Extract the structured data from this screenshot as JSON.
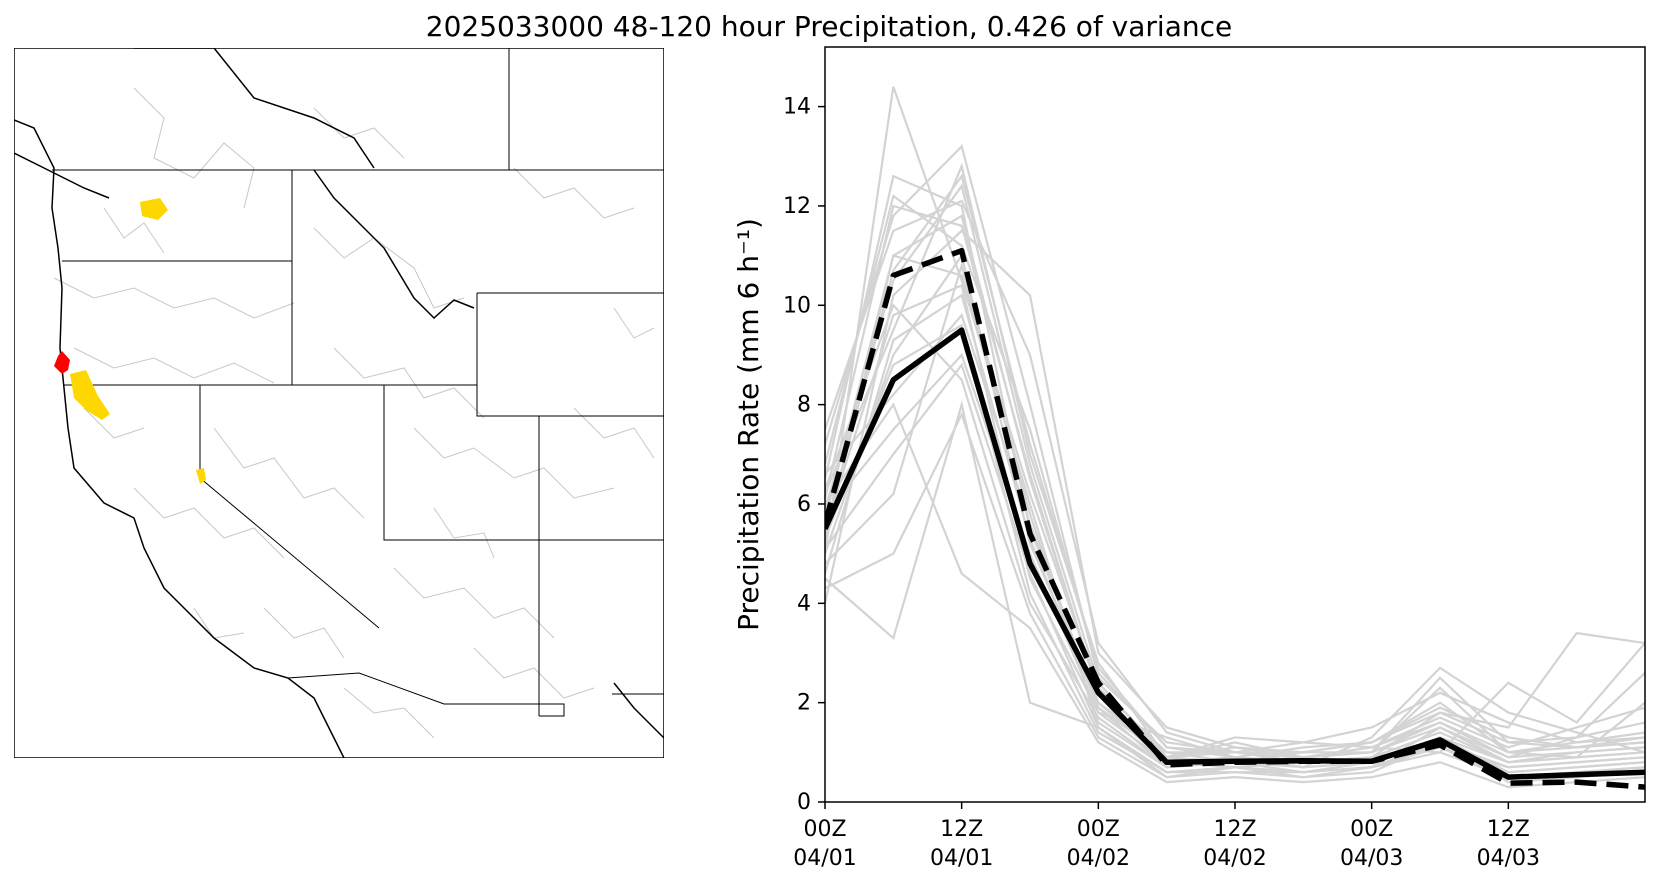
{
  "title": "2025033000 48-120 hour Precipitation, 0.426 of variance",
  "map": {
    "highlight_colors": {
      "top": "#ff0000",
      "other": "#ffd700"
    },
    "boundary_color": "#000000",
    "basin_color": "#bdbdbd"
  },
  "chart_data": {
    "type": "line",
    "ylabel": "Precipitation Rate (mm 6 h⁻¹)",
    "ylim": [
      0,
      15.2
    ],
    "yticks": [
      0,
      2,
      4,
      6,
      8,
      10,
      12,
      14
    ],
    "xlim": [
      0,
      12
    ],
    "xticks": [
      {
        "x": 0,
        "label": [
          "00Z",
          "04/01"
        ]
      },
      {
        "x": 2,
        "label": [
          "12Z",
          "04/01"
        ]
      },
      {
        "x": 4,
        "label": [
          "00Z",
          "04/02"
        ]
      },
      {
        "x": 6,
        "label": [
          "12Z",
          "04/02"
        ]
      },
      {
        "x": 8,
        "label": [
          "00Z",
          "04/03"
        ]
      },
      {
        "x": 10,
        "label": [
          "12Z",
          "04/03"
        ]
      }
    ],
    "x": [
      0,
      1,
      2,
      3,
      4,
      5,
      6,
      7,
      8,
      9,
      10,
      11,
      12
    ],
    "series": [
      {
        "role": "solid",
        "color": "#000000",
        "style": "solid",
        "values": [
          5.5,
          8.5,
          9.5,
          4.8,
          2.2,
          0.8,
          0.82,
          0.83,
          0.82,
          1.25,
          0.5,
          0.55,
          0.6
        ]
      },
      {
        "role": "dashed",
        "color": "#000000",
        "style": "dashed",
        "values": [
          5.6,
          10.6,
          11.1,
          5.4,
          2.4,
          0.75,
          0.8,
          0.82,
          0.82,
          1.15,
          0.38,
          0.4,
          0.3
        ]
      }
    ],
    "members": [
      [
        5.0,
        14.4,
        10.5,
        6.0,
        1.5,
        0.6,
        0.7,
        0.6,
        0.7,
        1.5,
        0.8,
        0.9,
        1.0
      ],
      [
        6.5,
        12.6,
        12.0,
        5.5,
        2.0,
        1.0,
        0.8,
        1.0,
        1.2,
        2.0,
        1.0,
        1.2,
        1.4
      ],
      [
        7.2,
        11.8,
        13.2,
        8.0,
        2.5,
        1.2,
        1.0,
        0.8,
        0.9,
        1.8,
        1.5,
        3.4,
        3.2
      ],
      [
        4.0,
        10.2,
        11.5,
        10.2,
        3.0,
        1.5,
        1.1,
        0.9,
        1.0,
        2.5,
        1.2,
        1.3,
        2.6
      ],
      [
        6.2,
        9.5,
        12.8,
        7.0,
        2.8,
        0.9,
        1.3,
        1.2,
        1.1,
        1.0,
        2.4,
        1.6,
        3.2
      ],
      [
        5.8,
        7.5,
        9.0,
        5.0,
        1.8,
        1.3,
        0.9,
        0.7,
        1.3,
        2.7,
        1.8,
        1.4,
        1.0
      ],
      [
        4.5,
        3.3,
        8.0,
        2.0,
        1.5,
        0.5,
        0.6,
        0.5,
        0.6,
        1.2,
        0.4,
        0.5,
        0.6
      ],
      [
        6.0,
        8.0,
        4.6,
        3.5,
        1.2,
        0.4,
        0.5,
        0.4,
        0.5,
        0.8,
        0.3,
        0.4,
        0.5
      ],
      [
        5.2,
        11.0,
        11.8,
        6.5,
        2.2,
        0.9,
        1.0,
        0.9,
        1.0,
        1.6,
        0.9,
        1.0,
        1.1
      ],
      [
        5.5,
        9.8,
        10.4,
        4.5,
        1.8,
        0.8,
        0.7,
        0.8,
        0.9,
        1.1,
        0.7,
        0.8,
        0.9
      ],
      [
        6.8,
        12.2,
        11.2,
        7.5,
        2.6,
        1.1,
        0.9,
        1.1,
        1.2,
        1.9,
        1.3,
        1.1,
        1.2
      ],
      [
        4.8,
        6.2,
        10.8,
        5.8,
        1.6,
        0.7,
        0.8,
        0.7,
        0.8,
        1.3,
        0.6,
        0.7,
        0.8
      ],
      [
        5.9,
        10.5,
        12.4,
        6.8,
        2.4,
        0.9,
        1.2,
        0.9,
        1.1,
        1.7,
        1.1,
        1.5,
        1.9
      ],
      [
        5.3,
        8.8,
        9.6,
        4.2,
        1.4,
        0.6,
        0.6,
        0.6,
        0.7,
        1.0,
        0.5,
        0.6,
        0.7
      ],
      [
        7.5,
        11.5,
        12.1,
        9.0,
        3.2,
        1.4,
        1.0,
        1.2,
        1.5,
        2.2,
        1.6,
        1.2,
        1.3
      ],
      [
        5.0,
        9.0,
        11.0,
        5.2,
        2.0,
        0.8,
        0.9,
        0.8,
        0.9,
        1.4,
        0.8,
        0.9,
        2.0
      ],
      [
        6.3,
        10.0,
        8.5,
        4.0,
        1.7,
        0.7,
        0.8,
        0.6,
        0.8,
        1.2,
        0.6,
        0.7,
        0.8
      ],
      [
        4.3,
        5.0,
        7.8,
        3.8,
        1.3,
        0.5,
        0.7,
        0.5,
        0.7,
        1.1,
        0.5,
        0.6,
        0.7
      ],
      [
        5.7,
        11.0,
        10.6,
        6.2,
        2.3,
        1.0,
        1.0,
        0.9,
        1.0,
        1.5,
        0.9,
        1.3,
        1.6
      ],
      [
        6.6,
        8.2,
        9.8,
        5.6,
        1.9,
        0.9,
        1.1,
        1.0,
        1.0,
        2.3,
        1.0,
        1.1,
        1.2
      ],
      [
        5.1,
        7.0,
        8.8,
        4.6,
        1.5,
        0.6,
        0.7,
        0.6,
        0.7,
        1.2,
        0.7,
        0.8,
        0.9
      ],
      [
        6.1,
        12.0,
        11.6,
        6.6,
        2.2,
        0.9,
        0.8,
        0.9,
        1.1,
        1.6,
        1.0,
        0.9,
        1.0
      ],
      [
        4.6,
        9.3,
        10.2,
        5.3,
        1.9,
        0.7,
        0.9,
        0.7,
        0.8,
        1.3,
        0.8,
        1.0,
        1.1
      ],
      [
        5.4,
        10.7,
        12.6,
        7.2,
        2.7,
        1.1,
        1.0,
        1.0,
        1.2,
        1.8,
        1.2,
        1.1,
        1.3
      ]
    ]
  }
}
